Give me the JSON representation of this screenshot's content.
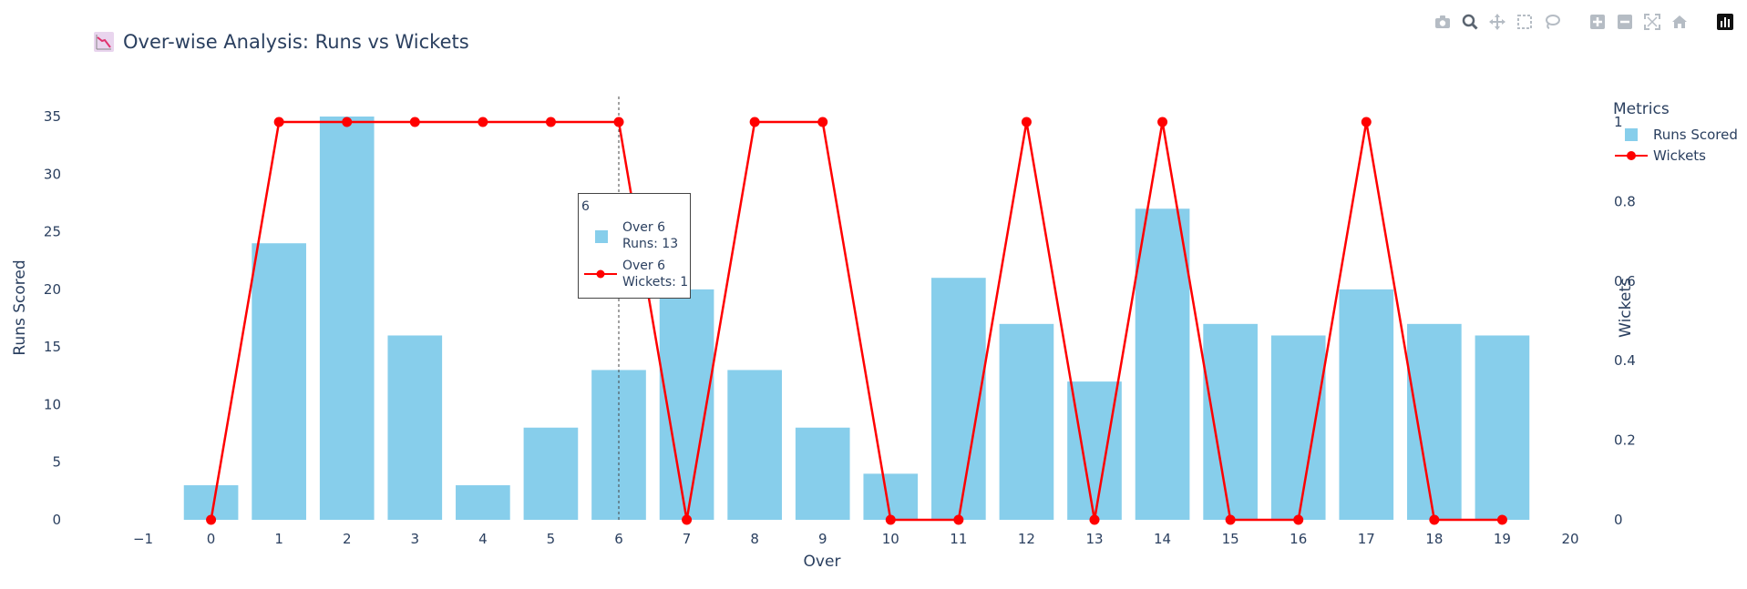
{
  "title": "Over-wise Analysis: Runs vs Wickets",
  "title_icon": "chart-decreasing-icon",
  "toolbar": {
    "buttons": [
      "camera-icon",
      "zoom-icon",
      "pan-icon",
      "box-select-icon",
      "lasso-select-icon",
      "zoom-in-icon",
      "zoom-out-icon",
      "autoscale-icon",
      "reset-axes-icon",
      "plotly-logo-icon"
    ]
  },
  "legend": {
    "title": "Metrics",
    "items": [
      {
        "label": "Runs Scored",
        "color": "#87CEEB"
      },
      {
        "label": "Wickets",
        "color": "#FF0000"
      }
    ]
  },
  "tooltip": {
    "header": "6",
    "bar_line1": "Over 6",
    "bar_line2": "Runs: 13",
    "line_line1": "Over 6",
    "line_line2": "Wickets: 1"
  },
  "chart_data": {
    "type": "bar",
    "title": "Over-wise Analysis: Runs vs Wickets",
    "xlabel": "Over",
    "ylabel": "Runs Scored",
    "y2label": "Wickets",
    "xlim": [
      -1,
      20
    ],
    "xticks": [
      "−1",
      "0",
      "1",
      "2",
      "3",
      "4",
      "5",
      "6",
      "7",
      "8",
      "9",
      "10",
      "11",
      "12",
      "13",
      "14",
      "15",
      "16",
      "17",
      "18",
      "19",
      "20"
    ],
    "ylim": [
      0,
      35
    ],
    "yticks": [
      "0",
      "5",
      "10",
      "15",
      "20",
      "25",
      "30",
      "35"
    ],
    "y2lim": [
      0,
      1
    ],
    "y2ticks": [
      "0",
      "0.2",
      "0.4",
      "0.6",
      "0.8",
      "1"
    ],
    "x": [
      0,
      1,
      2,
      3,
      4,
      5,
      6,
      7,
      8,
      9,
      10,
      11,
      12,
      13,
      14,
      15,
      16,
      17,
      18,
      19
    ],
    "series": [
      {
        "name": "Runs Scored",
        "type": "bar",
        "color": "#87CEEB",
        "values": [
          3,
          24,
          35,
          16,
          3,
          8,
          13,
          20,
          13,
          8,
          4,
          21,
          17,
          12,
          27,
          17,
          16,
          20,
          17,
          16
        ]
      },
      {
        "name": "Wickets",
        "type": "line+markers",
        "axis": "y2",
        "color": "#FF0000",
        "values": [
          0,
          1,
          1,
          1,
          1,
          1,
          1,
          0,
          1,
          1,
          0,
          0,
          1,
          0,
          1,
          0,
          0,
          1,
          0,
          0
        ]
      }
    ],
    "hover_x": 6,
    "grid": false,
    "legend_position": "top-right"
  }
}
